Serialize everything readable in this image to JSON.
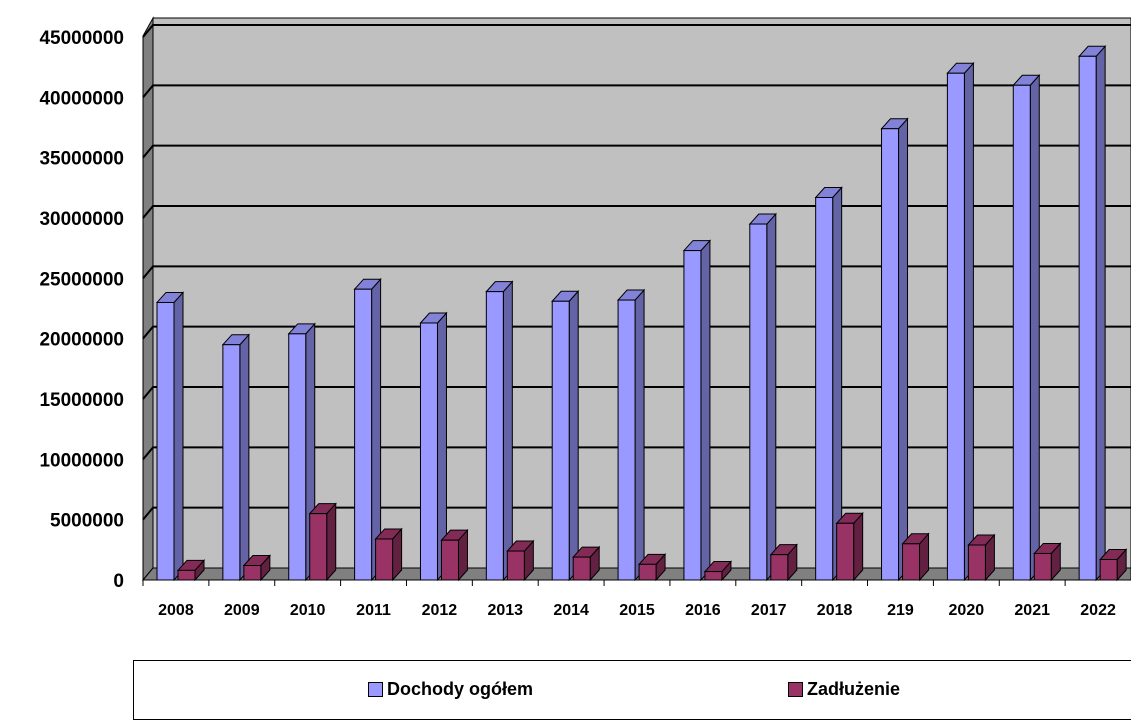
{
  "chart_data": {
    "type": "bar",
    "categories": [
      "2008",
      "2009",
      "2010",
      "2011",
      "2012",
      "2013",
      "2014",
      "2015",
      "2016",
      "2017",
      "2018",
      "219",
      "2020",
      "2021",
      "2022"
    ],
    "series": [
      {
        "name": "Dochody ogółem",
        "color": "#9999ff",
        "values": [
          23000000,
          19500000,
          20400000,
          24100000,
          21300000,
          23900000,
          23100000,
          23200000,
          27300000,
          29500000,
          31700000,
          37400000,
          42000000,
          41000000,
          43400000
        ]
      },
      {
        "name": "Zadłużenie",
        "color": "#993366",
        "values": [
          800000,
          1200000,
          5500000,
          3400000,
          3300000,
          2400000,
          1900000,
          1300000,
          700000,
          2100000,
          4700000,
          3000000,
          2900000,
          2200000,
          1700000
        ]
      }
    ],
    "y_ticks": [
      "45000000",
      "40000000",
      "35000000",
      "30000000",
      "25000000",
      "20000000",
      "15000000",
      "10000000",
      "5000000",
      "0"
    ],
    "ylim": [
      0,
      45000000
    ],
    "grid": true,
    "legend_position": "bottom"
  }
}
